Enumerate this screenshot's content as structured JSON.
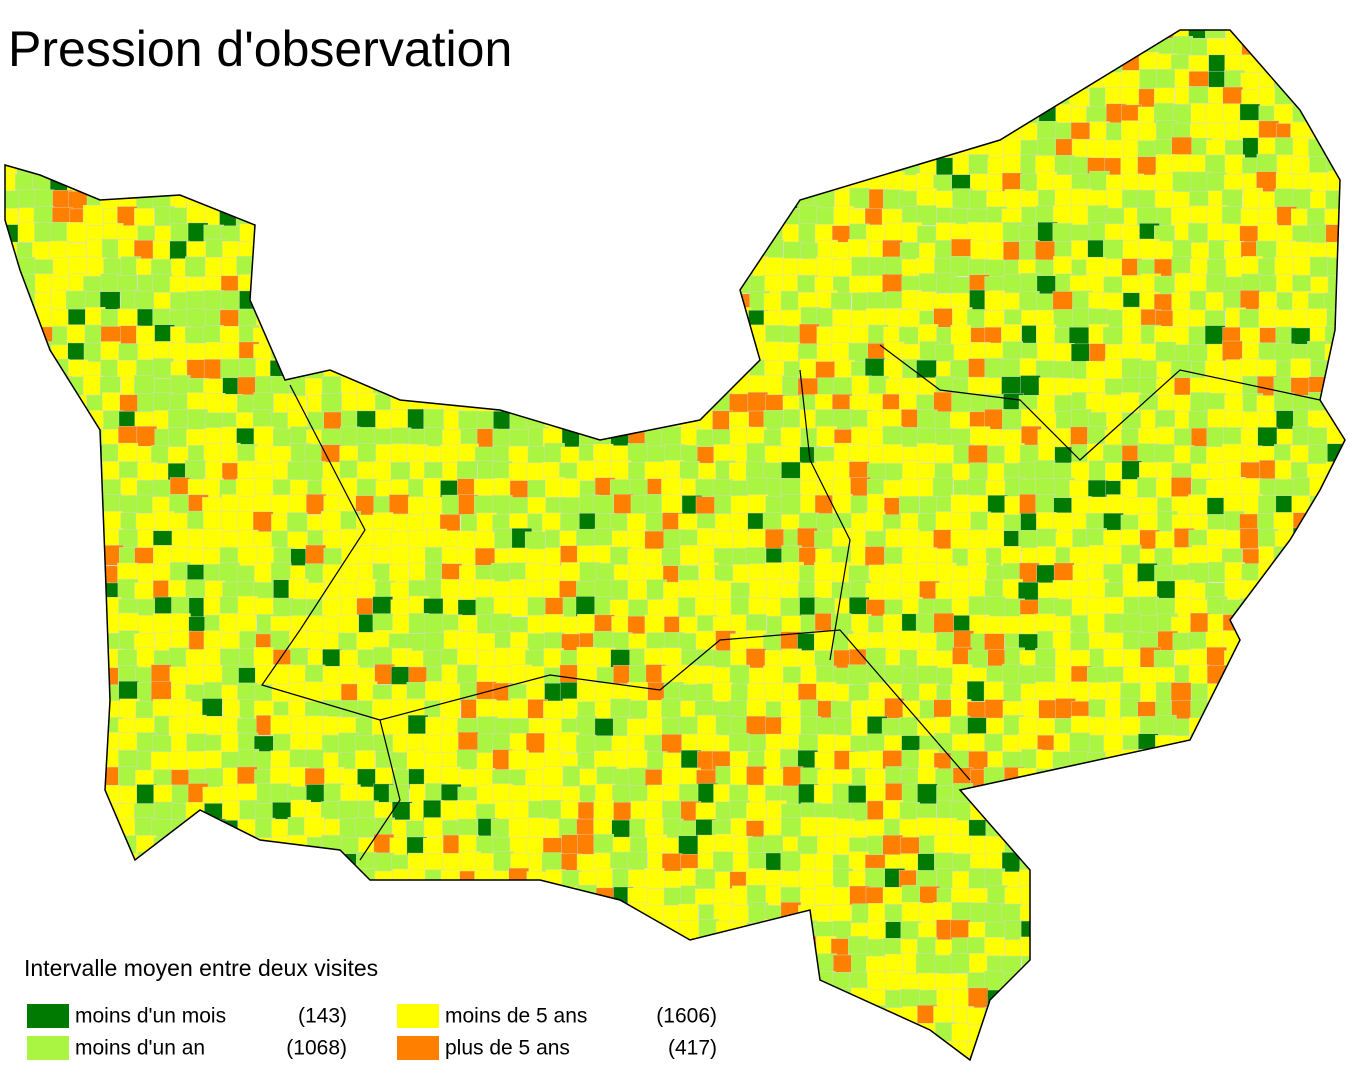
{
  "title": "Pression d'observation",
  "legend": {
    "title": "Intervalle moyen entre deux visites",
    "items": [
      {
        "label": "moins d'un mois",
        "count": "(143)",
        "color": "#007a00"
      },
      {
        "label": "moins d'un an",
        "count": "(1068)",
        "color": "#aaf542"
      },
      {
        "label": "moins de 5 ans",
        "count": "(1606)",
        "color": "#ffff00"
      },
      {
        "label": "plus de 5 ans",
        "count": "(417)",
        "color": "#ff8000"
      }
    ]
  }
}
